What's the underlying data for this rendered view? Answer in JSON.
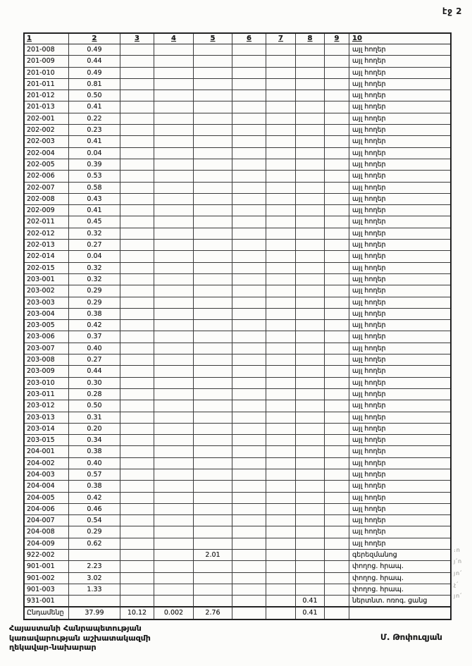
{
  "page": {
    "label": "էջ 2"
  },
  "table": {
    "headers": [
      "1",
      "2",
      "3",
      "4",
      "5",
      "6",
      "7",
      "8",
      "9",
      "10"
    ],
    "rows": [
      [
        "201-008",
        "0.49",
        "",
        "",
        "",
        "",
        "",
        "",
        "",
        "այլ հողեր"
      ],
      [
        "201-009",
        "0.44",
        "",
        "",
        "",
        "",
        "",
        "",
        "",
        "այլ հողեր"
      ],
      [
        "201-010",
        "0.49",
        "",
        "",
        "",
        "",
        "",
        "",
        "",
        "այլ հողեր"
      ],
      [
        "201-011",
        "0.81",
        "",
        "",
        "",
        "",
        "",
        "",
        "",
        "այլ հողեր"
      ],
      [
        "201-012",
        "0.50",
        "",
        "",
        "",
        "",
        "",
        "",
        "",
        "այլ հողեր"
      ],
      [
        "201-013",
        "0.41",
        "",
        "",
        "",
        "",
        "",
        "",
        "",
        "այլ հողեր"
      ],
      [
        "202-001",
        "0.22",
        "",
        "",
        "",
        "",
        "",
        "",
        "",
        "այլ հողեր"
      ],
      [
        "202-002",
        "0.23",
        "",
        "",
        "",
        "",
        "",
        "",
        "",
        "այլ հողեր"
      ],
      [
        "202-003",
        "0.41",
        "",
        "",
        "",
        "",
        "",
        "",
        "",
        "այլ հողեր"
      ],
      [
        "202-004",
        "0.04",
        "",
        "",
        "",
        "",
        "",
        "",
        "",
        "այլ հողեր"
      ],
      [
        "202-005",
        "0.39",
        "",
        "",
        "",
        "",
        "",
        "",
        "",
        "այլ հողեր"
      ],
      [
        "202-006",
        "0.53",
        "",
        "",
        "",
        "",
        "",
        "",
        "",
        "այլ հողեր"
      ],
      [
        "202-007",
        "0.58",
        "",
        "",
        "",
        "",
        "",
        "",
        "",
        "այլ հողեր"
      ],
      [
        "202-008",
        "0.43",
        "",
        "",
        "",
        "",
        "",
        "",
        "",
        "այլ հողեր"
      ],
      [
        "202-009",
        "0.41",
        "",
        "",
        "",
        "",
        "",
        "",
        "",
        "այլ հողեր"
      ],
      [
        "202-011",
        "0.45",
        "",
        "",
        "",
        "",
        "",
        "",
        "",
        "այլ հողեր"
      ],
      [
        "202-012",
        "0.32",
        "",
        "",
        "",
        "",
        "",
        "",
        "",
        "այլ հողեր"
      ],
      [
        "202-013",
        "0.27",
        "",
        "",
        "",
        "",
        "",
        "",
        "",
        "այլ հողեր"
      ],
      [
        "202-014",
        "0.04",
        "",
        "",
        "",
        "",
        "",
        "",
        "",
        "այլ հողեր"
      ],
      [
        "202-015",
        "0.32",
        "",
        "",
        "",
        "",
        "",
        "",
        "",
        "այլ հողեր"
      ],
      [
        "203-001",
        "0.32",
        "",
        "",
        "",
        "",
        "",
        "",
        "",
        "այլ հողեր"
      ],
      [
        "203-002",
        "0.29",
        "",
        "",
        "",
        "",
        "",
        "",
        "",
        "այլ հողեր"
      ],
      [
        "203-003",
        "0.29",
        "",
        "",
        "",
        "",
        "",
        "",
        "",
        "այլ հողեր"
      ],
      [
        "203-004",
        "0.38",
        "",
        "",
        "",
        "",
        "",
        "",
        "",
        "այլ հողեր"
      ],
      [
        "203-005",
        "0.42",
        "",
        "",
        "",
        "",
        "",
        "",
        "",
        "այլ հողեր"
      ],
      [
        "203-006",
        "0.37",
        "",
        "",
        "",
        "",
        "",
        "",
        "",
        "այլ հողեր"
      ],
      [
        "203-007",
        "0.40",
        "",
        "",
        "",
        "",
        "",
        "",
        "",
        "այլ հողեր"
      ],
      [
        "203-008",
        "0.27",
        "",
        "",
        "",
        "",
        "",
        "",
        "",
        "այլ հողեր"
      ],
      [
        "203-009",
        "0.44",
        "",
        "",
        "",
        "",
        "",
        "",
        "",
        "այլ հողեր"
      ],
      [
        "203-010",
        "0.30",
        "",
        "",
        "",
        "",
        "",
        "",
        "",
        "այլ հողեր"
      ],
      [
        "203-011",
        "0.28",
        "",
        "",
        "",
        "",
        "",
        "",
        "",
        "այլ հողեր"
      ],
      [
        "203-012",
        "0.50",
        "",
        "",
        "",
        "",
        "",
        "",
        "",
        "այլ հողեր"
      ],
      [
        "203-013",
        "0.31",
        "",
        "",
        "",
        "",
        "",
        "",
        "",
        "այլ հողեր"
      ],
      [
        "203-014",
        "0.20",
        "",
        "",
        "",
        "",
        "",
        "",
        "",
        "այլ հողեր"
      ],
      [
        "203-015",
        "0.34",
        "",
        "",
        "",
        "",
        "",
        "",
        "",
        "այլ հողեր"
      ],
      [
        "204-001",
        "0.38",
        "",
        "",
        "",
        "",
        "",
        "",
        "",
        "այլ հողեր"
      ],
      [
        "204-002",
        "0.40",
        "",
        "",
        "",
        "",
        "",
        "",
        "",
        "այլ հողեր"
      ],
      [
        "204-003",
        "0.57",
        "",
        "",
        "",
        "",
        "",
        "",
        "",
        "այլ հողեր"
      ],
      [
        "204-004",
        "0.38",
        "",
        "",
        "",
        "",
        "",
        "",
        "",
        "այլ հողեր"
      ],
      [
        "204-005",
        "0.42",
        "",
        "",
        "",
        "",
        "",
        "",
        "",
        "այլ հողեր"
      ],
      [
        "204-006",
        "0.46",
        "",
        "",
        "",
        "",
        "",
        "",
        "",
        "այլ հողեր"
      ],
      [
        "204-007",
        "0.54",
        "",
        "",
        "",
        "",
        "",
        "",
        "",
        "այլ հողեր"
      ],
      [
        "204-008",
        "0.29",
        "",
        "",
        "",
        "",
        "",
        "",
        "",
        "այլ հողեր"
      ],
      [
        "204-009",
        "0.62",
        "",
        "",
        "",
        "",
        "",
        "",
        "",
        "այլ հողեր"
      ],
      [
        "922-002",
        "",
        "",
        "",
        "2.01",
        "",
        "",
        "",
        "",
        "գերեզմանոց"
      ],
      [
        "901-001",
        "2.23",
        "",
        "",
        "",
        "",
        "",
        "",
        "",
        "փողոց. հրապ."
      ],
      [
        "901-002",
        "3.02",
        "",
        "",
        "",
        "",
        "",
        "",
        "",
        "փողոց. հրապ."
      ],
      [
        "901-003",
        "1.33",
        "",
        "",
        "",
        "",
        "",
        "",
        "",
        "փողոց. հրապ."
      ],
      [
        "931-001",
        "",
        "",
        "",
        "",
        "",
        "",
        "0.41",
        "",
        "ներտնտ. ոռոգ. ցանց"
      ],
      [
        "Ընդամենը",
        "37.99",
        "10.12",
        "0.002",
        "2.76",
        "",
        "",
        "0.41",
        "",
        ""
      ]
    ]
  },
  "margin_marks": [
    "։ո",
    "յ՛ո",
    "յո՛",
    "չ՛",
    "յո՛"
  ],
  "footer": {
    "org_line1": "Հայաստանի Հանրապետության",
    "org_line2": "կառավարության աշխատակազմի",
    "org_line3": "ղեկավար-նախարար",
    "signature": "Մ. Թոփուզյան"
  },
  "colors": {
    "ink": "#1b1b1b",
    "paper": "#fcfcfa",
    "border": "#3a3a3a"
  }
}
